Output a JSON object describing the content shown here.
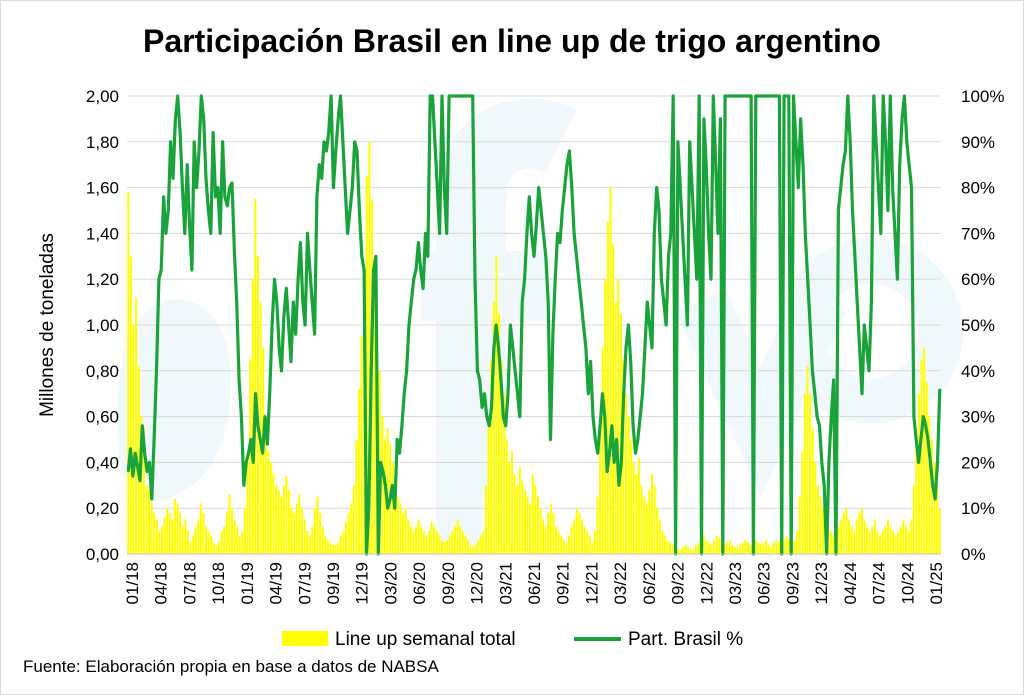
{
  "chart_data": {
    "type": "bar+line",
    "title": "Participación Brasil en line up de trigo argentino",
    "source": "Fuente: Elaboración propia en base a datos de NABSA",
    "y_left_label": "Millones de toneladas",
    "y_left_ticks": [
      "0,00",
      "0,20",
      "0,40",
      "0,60",
      "0,80",
      "1,00",
      "1,20",
      "1,40",
      "1,60",
      "1,80",
      "2,00"
    ],
    "y_left_range": [
      0,
      2
    ],
    "y_right_ticks": [
      "0%",
      "10%",
      "20%",
      "30%",
      "40%",
      "50%",
      "60%",
      "70%",
      "80%",
      "90%",
      "100%"
    ],
    "y_right_range": [
      0,
      100
    ],
    "x_tick_labels": [
      "01/18",
      "04/18",
      "07/18",
      "10/18",
      "01/19",
      "04/19",
      "07/19",
      "09/19",
      "12/19",
      "03/20",
      "06/20",
      "09/20",
      "12/20",
      "03/21",
      "06/21",
      "09/21",
      "12/21",
      "03/22",
      "06/22",
      "09/22",
      "12/22",
      "03/23",
      "06/23",
      "09/23",
      "12/23",
      "04/24",
      "07/24",
      "10/24",
      "01/25"
    ],
    "grid": true,
    "legend_position": "bottom",
    "colors": {
      "bars": "#ffff00",
      "line": "#1aa33b",
      "watermark": "#e6f3f8"
    },
    "series": [
      {
        "name": "Line up semanal total",
        "axis": "left",
        "kind": "bar",
        "period_step_weeks": 1,
        "values": [
          1.58,
          1.3,
          1.0,
          1.12,
          0.82,
          0.6,
          0.55,
          0.3,
          0.28,
          0.22,
          0.18,
          0.15,
          0.1,
          0.12,
          0.16,
          0.2,
          0.18,
          0.15,
          0.24,
          0.22,
          0.18,
          0.12,
          0.15,
          0.1,
          0.05,
          0.08,
          0.12,
          0.15,
          0.22,
          0.18,
          0.12,
          0.1,
          0.08,
          0.05,
          0.04,
          0.05,
          0.1,
          0.12,
          0.18,
          0.26,
          0.2,
          0.15,
          0.12,
          0.08,
          0.1,
          0.2,
          0.4,
          0.85,
          1.2,
          1.55,
          1.3,
          1.1,
          0.9,
          0.6,
          0.45,
          0.4,
          0.35,
          0.3,
          0.28,
          0.25,
          0.3,
          0.34,
          0.28,
          0.2,
          0.18,
          0.22,
          0.26,
          0.2,
          0.15,
          0.1,
          0.08,
          0.12,
          0.2,
          0.25,
          0.18,
          0.12,
          0.08,
          0.06,
          0.05,
          0.04,
          0.04,
          0.05,
          0.08,
          0.1,
          0.14,
          0.18,
          0.22,
          0.3,
          0.5,
          0.72,
          0.95,
          1.25,
          1.65,
          1.8,
          1.55,
          1.2,
          0.95,
          0.8,
          0.6,
          0.5,
          0.55,
          0.48,
          0.4,
          0.3,
          0.25,
          0.22,
          0.18,
          0.2,
          0.15,
          0.12,
          0.1,
          0.12,
          0.15,
          0.12,
          0.1,
          0.08,
          0.1,
          0.14,
          0.12,
          0.1,
          0.08,
          0.06,
          0.05,
          0.06,
          0.08,
          0.1,
          0.12,
          0.15,
          0.12,
          0.1,
          0.08,
          0.06,
          0.04,
          0.03,
          0.04,
          0.06,
          0.08,
          0.1,
          0.3,
          0.55,
          0.85,
          1.1,
          1.3,
          1.05,
          0.85,
          0.7,
          0.5,
          0.4,
          0.45,
          0.35,
          0.3,
          0.38,
          0.32,
          0.28,
          0.25,
          0.22,
          0.35,
          0.3,
          0.25,
          0.2,
          0.15,
          0.12,
          0.18,
          0.22,
          0.18,
          0.12,
          0.1,
          0.08,
          0.06,
          0.05,
          0.08,
          0.12,
          0.15,
          0.2,
          0.18,
          0.15,
          0.12,
          0.1,
          0.08,
          0.05,
          0.1,
          0.25,
          0.55,
          0.9,
          1.2,
          1.45,
          1.6,
          1.35,
          1.1,
          1.2,
          1.05,
          0.85,
          0.7,
          0.6,
          0.5,
          0.4,
          0.35,
          0.42,
          0.3,
          0.25,
          0.22,
          0.28,
          0.35,
          0.3,
          0.2,
          0.15,
          0.1,
          0.08,
          0.06,
          0.05,
          0.04,
          0.03,
          0.02,
          0.02,
          0.03,
          0.04,
          0.03,
          0.02,
          0.02,
          0.04,
          0.05,
          0.06,
          0.08,
          0.06,
          0.05,
          0.04,
          0.06,
          0.08,
          0.07,
          0.05,
          0.04,
          0.05,
          0.06,
          0.04,
          0.03,
          0.03,
          0.04,
          0.05,
          0.06,
          0.05,
          0.04,
          0.05,
          0.06,
          0.05,
          0.04,
          0.05,
          0.06,
          0.04,
          0.03,
          0.05,
          0.06,
          0.05,
          0.04,
          0.06,
          0.08,
          0.06,
          0.05,
          0.06,
          0.1,
          0.25,
          0.45,
          0.7,
          0.82,
          0.7,
          0.55,
          0.4,
          0.3,
          0.25,
          0.2,
          0.15,
          0.12,
          0.1,
          0.08,
          0.1,
          0.12,
          0.15,
          0.18,
          0.2,
          0.15,
          0.12,
          0.1,
          0.15,
          0.18,
          0.2,
          0.15,
          0.12,
          0.1,
          0.12,
          0.15,
          0.1,
          0.08,
          0.1,
          0.12,
          0.15,
          0.12,
          0.1,
          0.08,
          0.1,
          0.12,
          0.15,
          0.12,
          0.1,
          0.15,
          0.3,
          0.5,
          0.7,
          0.85,
          0.9,
          0.75,
          0.6,
          0.5,
          0.4,
          0.3,
          0.2
        ]
      },
      {
        "name": "Part. Brasil %",
        "axis": "right",
        "kind": "line",
        "period_step_weeks": 1,
        "values": [
          18,
          23,
          17,
          22,
          19,
          16,
          28,
          22,
          18,
          20,
          12,
          25,
          40,
          60,
          62,
          78,
          70,
          75,
          90,
          82,
          95,
          100,
          92,
          80,
          70,
          85,
          72,
          62,
          90,
          80,
          88,
          100,
          95,
          82,
          75,
          70,
          92,
          78,
          80,
          70,
          90,
          78,
          76,
          80,
          81,
          66,
          55,
          38,
          30,
          15,
          20,
          22,
          25,
          20,
          35,
          28,
          25,
          22,
          30,
          24,
          35,
          50,
          60,
          55,
          45,
          40,
          52,
          58,
          50,
          42,
          55,
          48,
          60,
          68,
          55,
          50,
          70,
          62,
          55,
          48,
          78,
          85,
          82,
          90,
          88,
          92,
          100,
          80,
          88,
          95,
          100,
          90,
          80,
          70,
          75,
          80,
          90,
          88,
          75,
          65,
          62,
          0,
          10,
          40,
          62,
          65,
          0,
          20,
          18,
          15,
          10,
          12,
          15,
          10,
          25,
          22,
          28,
          35,
          40,
          50,
          55,
          60,
          62,
          68,
          62,
          58,
          70,
          65,
          100,
          100,
          90,
          80,
          70,
          100,
          80,
          70,
          100,
          100,
          100,
          100,
          100,
          100,
          100,
          100,
          100,
          100,
          100,
          60,
          40,
          38,
          32,
          35,
          30,
          28,
          32,
          45,
          50,
          45,
          38,
          30,
          28,
          35,
          50,
          45,
          40,
          35,
          30,
          55,
          60,
          70,
          78,
          70,
          65,
          72,
          80,
          75,
          70,
          65,
          55,
          25,
          48,
          60,
          70,
          68,
          75,
          80,
          85,
          88,
          80,
          70,
          65,
          60,
          55,
          50,
          45,
          35,
          42,
          30,
          25,
          22,
          28,
          35,
          30,
          18,
          22,
          28,
          20,
          25,
          15,
          20,
          35,
          45,
          50,
          42,
          28,
          22,
          25,
          30,
          35,
          45,
          55,
          50,
          45,
          70,
          80,
          75,
          60,
          55,
          50,
          65,
          70,
          100,
          0,
          90,
          80,
          70,
          60,
          50,
          90,
          80,
          70,
          60,
          100,
          0,
          95,
          85,
          70,
          60,
          100,
          85,
          70,
          95,
          0,
          100,
          100,
          100,
          100,
          100,
          100,
          100,
          100,
          100,
          100,
          100,
          100,
          0,
          100,
          100,
          100,
          100,
          100,
          100,
          100,
          100,
          100,
          100,
          100,
          0,
          100,
          100,
          100,
          0,
          100,
          90,
          80,
          95,
          85,
          70,
          60,
          50,
          40,
          35,
          30,
          28,
          20,
          15,
          0,
          20,
          30,
          38,
          0,
          75,
          80,
          85,
          88,
          100,
          90,
          75,
          65,
          55,
          45,
          35,
          50,
          45,
          40,
          55,
          100,
          90,
          80,
          70,
          100,
          90,
          75,
          100,
          80,
          70,
          60,
          85,
          95,
          100,
          90,
          85,
          80,
          30,
          25,
          20,
          25,
          30,
          28,
          25,
          20,
          15,
          12,
          20,
          36
        ]
      }
    ]
  }
}
